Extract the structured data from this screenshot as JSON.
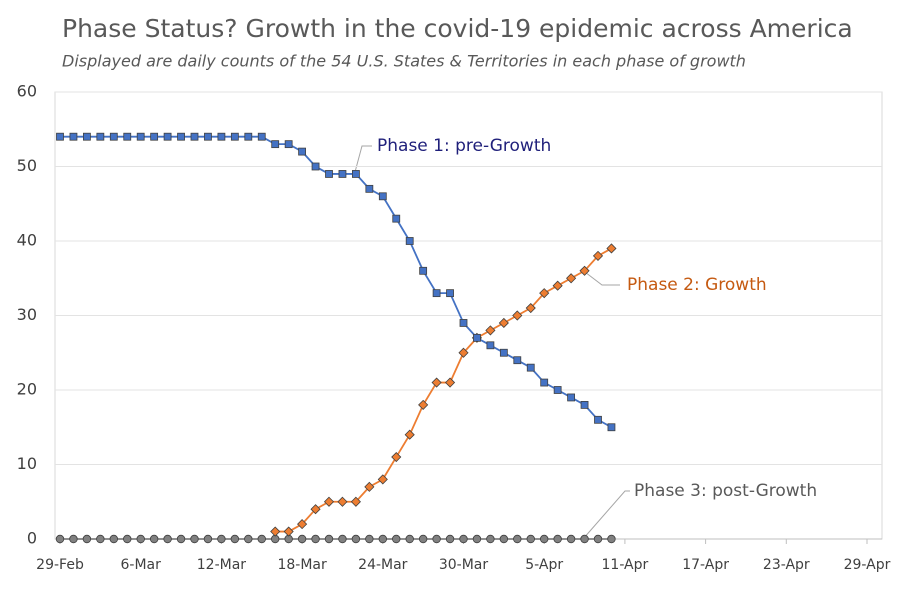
{
  "chart_data": {
    "type": "line",
    "title": "Phase Status? Growth in the covid-19 epidemic across America",
    "subtitle": "Displayed are daily counts of the 54 U.S. States & Territories in each phase of growth",
    "x": [
      "29-Feb",
      "1-Mar",
      "2-Mar",
      "3-Mar",
      "4-Mar",
      "5-Mar",
      "6-Mar",
      "7-Mar",
      "8-Mar",
      "9-Mar",
      "10-Mar",
      "11-Mar",
      "12-Mar",
      "13-Mar",
      "14-Mar",
      "15-Mar",
      "16-Mar",
      "17-Mar",
      "18-Mar",
      "19-Mar",
      "20-Mar",
      "21-Mar",
      "22-Mar",
      "23-Mar",
      "24-Mar",
      "25-Mar",
      "26-Mar",
      "27-Mar",
      "28-Mar",
      "29-Mar",
      "30-Mar",
      "31-Mar",
      "1-Apr",
      "2-Apr",
      "3-Apr",
      "4-Apr",
      "5-Apr",
      "6-Apr",
      "7-Apr",
      "8-Apr",
      "9-Apr",
      "10-Apr"
    ],
    "series": [
      {
        "name": "Phase 1: pre-Growth",
        "color": "#4472c4",
        "marker": "square",
        "values": [
          54,
          54,
          54,
          54,
          54,
          54,
          54,
          54,
          54,
          54,
          54,
          54,
          54,
          54,
          54,
          54,
          53,
          53,
          52,
          50,
          49,
          49,
          49,
          47,
          46,
          43,
          40,
          36,
          33,
          33,
          29,
          27,
          26,
          25,
          24,
          23,
          21,
          20,
          19,
          18,
          16,
          15
        ]
      },
      {
        "name": "Phase 2: Growth",
        "color": "#ed7d31",
        "marker": "diamond",
        "values": [
          null,
          null,
          null,
          null,
          null,
          null,
          null,
          null,
          null,
          null,
          null,
          null,
          null,
          null,
          null,
          null,
          1,
          1,
          2,
          4,
          5,
          5,
          5,
          7,
          8,
          11,
          14,
          18,
          21,
          21,
          25,
          27,
          28,
          29,
          30,
          31,
          33,
          34,
          35,
          36,
          38,
          39
        ]
      },
      {
        "name": "Phase 3: post-Growth",
        "color": "#808080",
        "marker": "circle",
        "values": [
          0,
          0,
          0,
          0,
          0,
          0,
          0,
          0,
          0,
          0,
          0,
          0,
          0,
          0,
          0,
          0,
          0,
          0,
          0,
          0,
          0,
          0,
          0,
          0,
          0,
          0,
          0,
          0,
          0,
          0,
          0,
          0,
          0,
          0,
          0,
          0,
          0,
          0,
          0,
          0,
          0,
          0
        ]
      }
    ],
    "xlim": [
      "29-Feb",
      "29-Apr"
    ],
    "xticks": [
      "29-Feb",
      "6-Mar",
      "12-Mar",
      "18-Mar",
      "24-Mar",
      "30-Mar",
      "5-Apr",
      "11-Apr",
      "17-Apr",
      "23-Apr",
      "29-Apr"
    ],
    "ylim": [
      0,
      60
    ],
    "yticks": [
      0,
      10,
      20,
      30,
      40,
      50,
      60
    ],
    "grid": true
  }
}
